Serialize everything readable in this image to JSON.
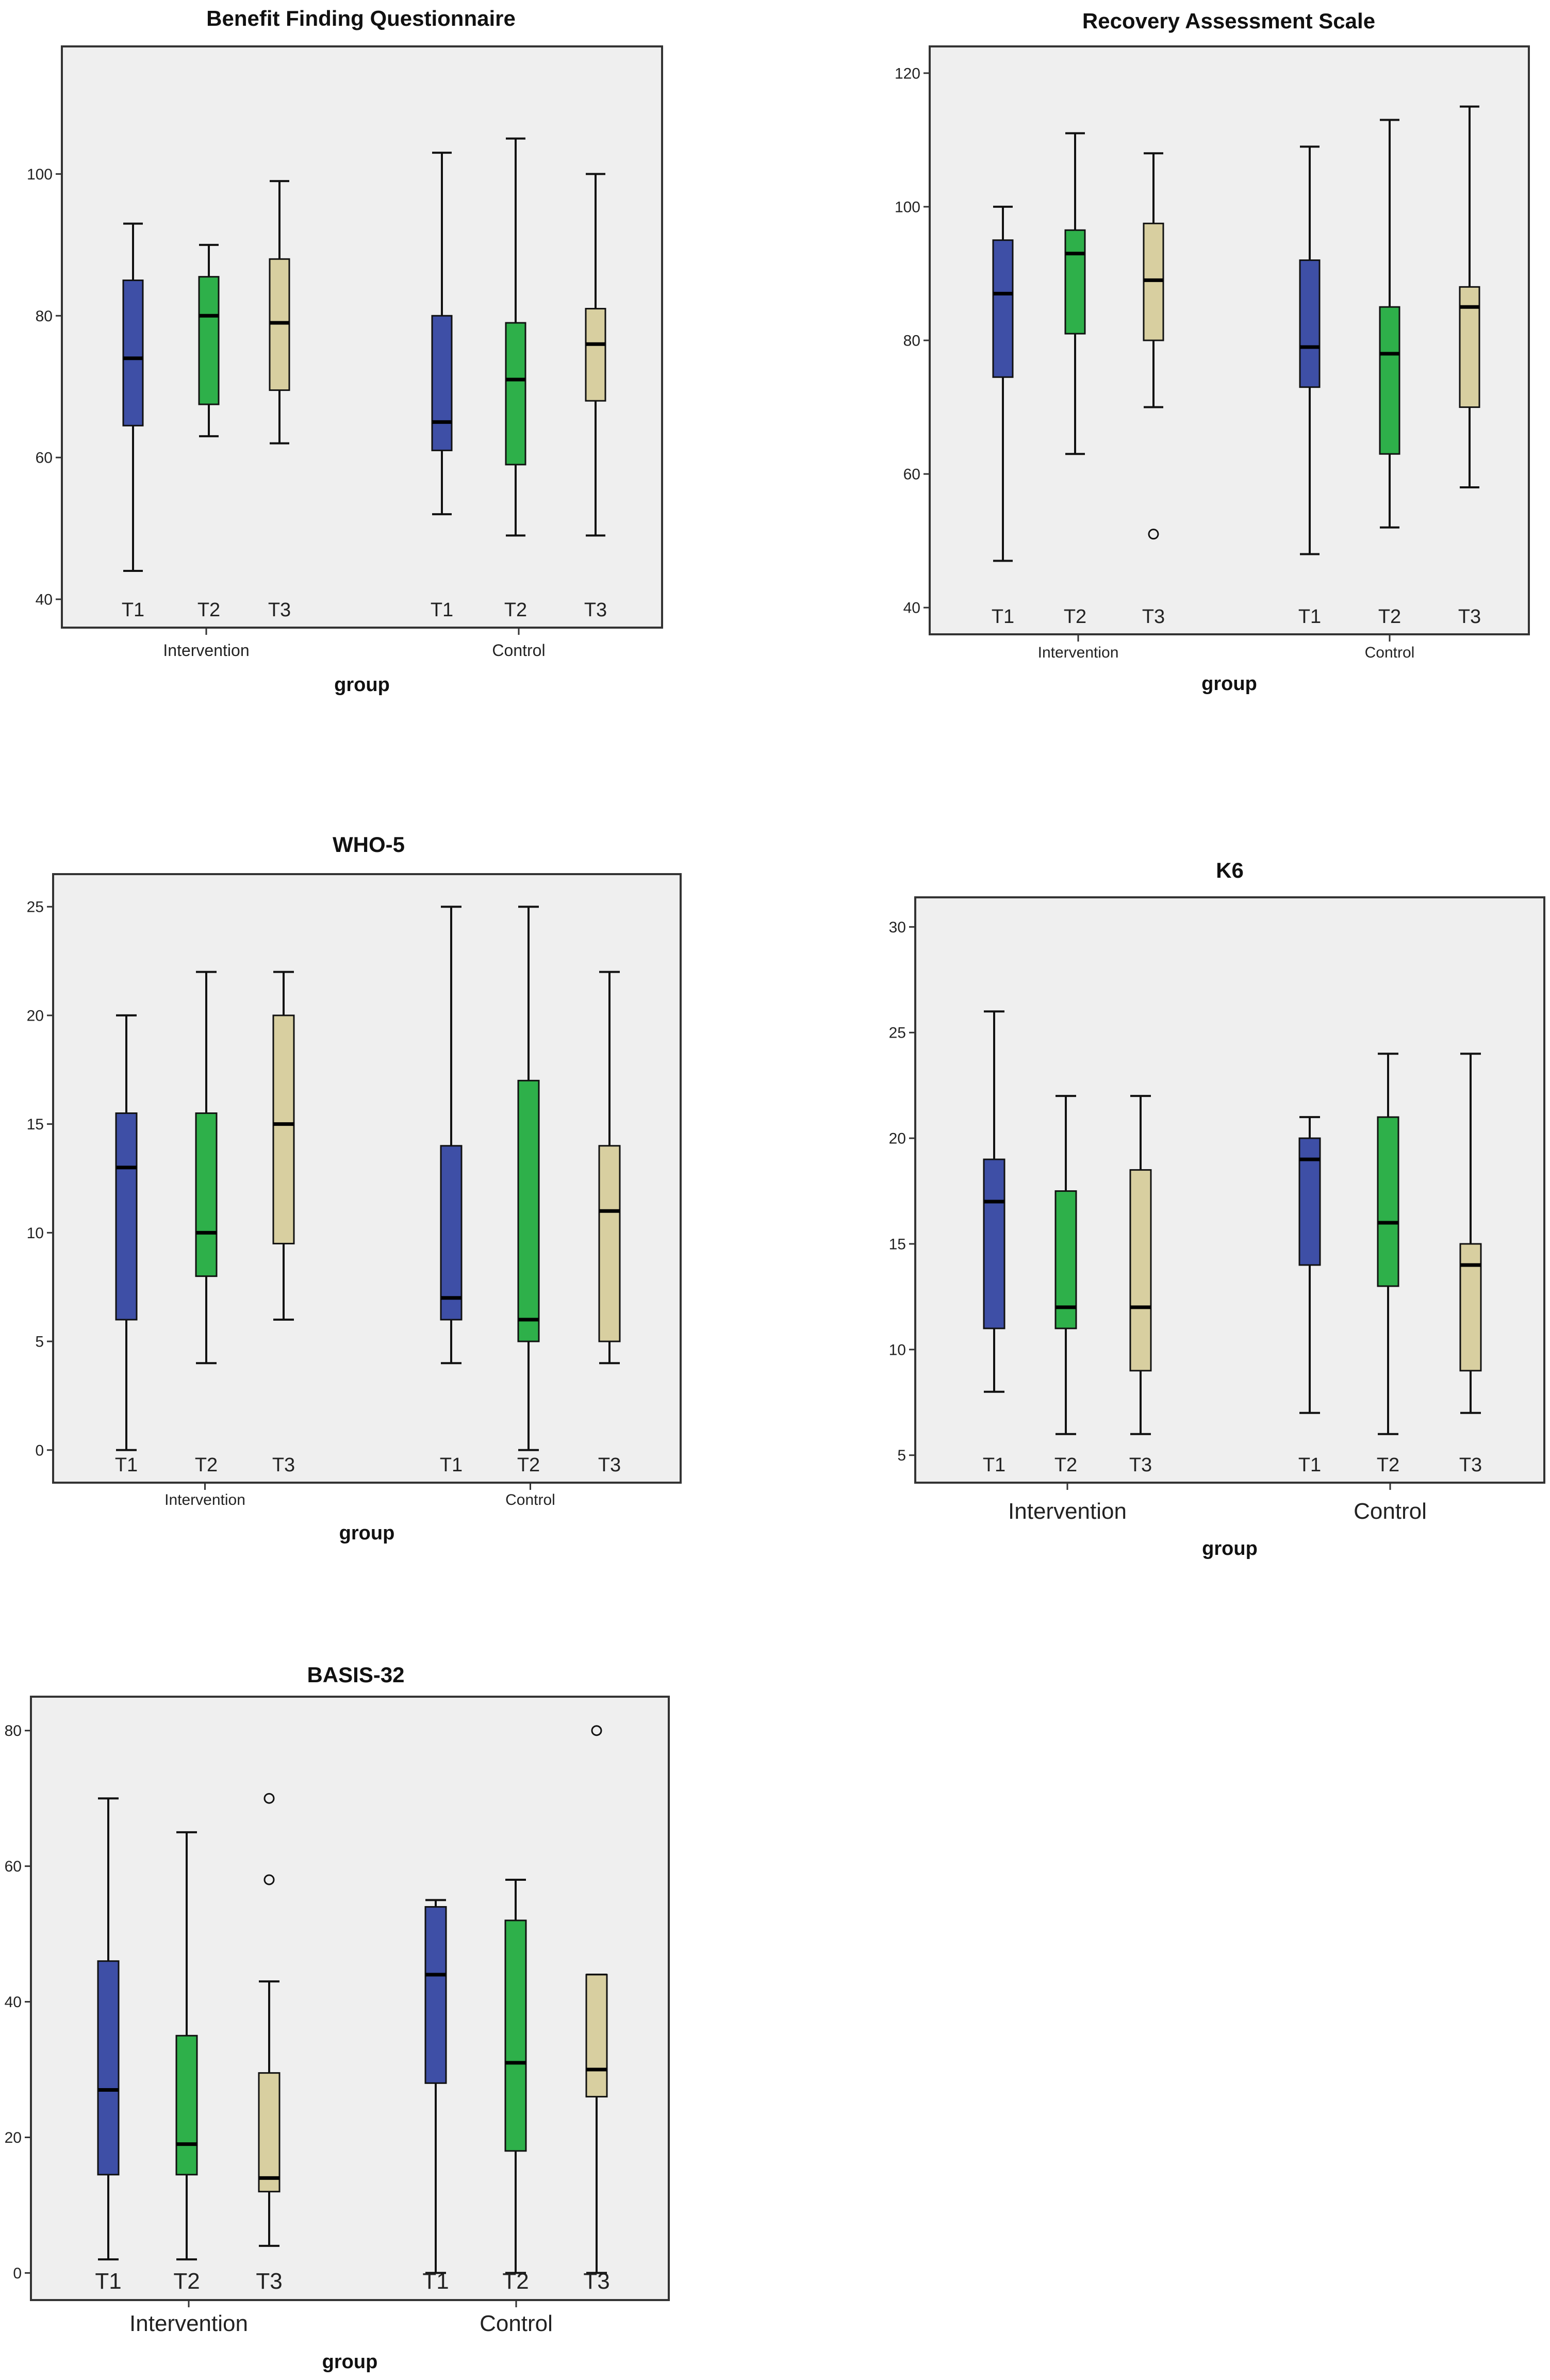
{
  "colors": {
    "T1": "#3e4fa6",
    "T2": "#2eb04a",
    "T3": "#d8cfa0",
    "plot_bg": "#efefef",
    "outline": "#111111"
  },
  "chart_data": [
    {
      "type": "boxplot",
      "title": "Benefit Finding Questionnaire",
      "xlabel": "group",
      "ylabel": "",
      "ylim": [
        36,
        118
      ],
      "yticks": [
        40,
        60,
        80,
        100
      ],
      "groups": [
        "Intervention",
        "Control"
      ],
      "timepoints": [
        "T1",
        "T2",
        "T3"
      ],
      "boxes": [
        {
          "group": "Intervention",
          "timepoint": "T1",
          "min": 44,
          "q1": 64.5,
          "median": 74,
          "q3": 85,
          "max": 93,
          "outliers": []
        },
        {
          "group": "Intervention",
          "timepoint": "T2",
          "min": 63,
          "q1": 67.5,
          "median": 80,
          "q3": 85.5,
          "max": 90,
          "outliers": []
        },
        {
          "group": "Intervention",
          "timepoint": "T3",
          "min": 62,
          "q1": 69.5,
          "median": 79,
          "q3": 88,
          "max": 99,
          "outliers": []
        },
        {
          "group": "Control",
          "timepoint": "T1",
          "min": 52,
          "q1": 61,
          "median": 65,
          "q3": 80,
          "max": 103,
          "outliers": []
        },
        {
          "group": "Control",
          "timepoint": "T2",
          "min": 49,
          "q1": 59,
          "median": 71,
          "q3": 79,
          "max": 105,
          "outliers": []
        },
        {
          "group": "Control",
          "timepoint": "T3",
          "min": 49,
          "q1": 68,
          "median": 76,
          "q3": 81,
          "max": 100,
          "outliers": []
        }
      ]
    },
    {
      "type": "boxplot",
      "title": "Recovery Assessment Scale",
      "xlabel": "group",
      "ylabel": "",
      "ylim": [
        36,
        124
      ],
      "yticks": [
        40,
        60,
        80,
        100,
        120
      ],
      "groups": [
        "Intervention",
        "Control"
      ],
      "timepoints": [
        "T1",
        "T2",
        "T3"
      ],
      "boxes": [
        {
          "group": "Intervention",
          "timepoint": "T1",
          "min": 47,
          "q1": 74.5,
          "median": 87,
          "q3": 95,
          "max": 100,
          "outliers": []
        },
        {
          "group": "Intervention",
          "timepoint": "T2",
          "min": 63,
          "q1": 81,
          "median": 93,
          "q3": 96.5,
          "max": 111,
          "outliers": []
        },
        {
          "group": "Intervention",
          "timepoint": "T3",
          "min": 70,
          "q1": 80,
          "median": 89,
          "q3": 97.5,
          "max": 108,
          "outliers": [
            51
          ]
        },
        {
          "group": "Control",
          "timepoint": "T1",
          "min": 48,
          "q1": 73,
          "median": 79,
          "q3": 92,
          "max": 109,
          "outliers": []
        },
        {
          "group": "Control",
          "timepoint": "T2",
          "min": 52,
          "q1": 63,
          "median": 78,
          "q3": 85,
          "max": 113,
          "outliers": []
        },
        {
          "group": "Control",
          "timepoint": "T3",
          "min": 58,
          "q1": 70,
          "median": 85,
          "q3": 88,
          "max": 115,
          "outliers": []
        }
      ]
    },
    {
      "type": "boxplot",
      "title": "WHO-5",
      "xlabel": "group",
      "ylabel": "",
      "ylim": [
        -1.5,
        26.5
      ],
      "yticks": [
        0,
        5,
        10,
        15,
        20,
        25
      ],
      "groups": [
        "Intervention",
        "Control"
      ],
      "timepoints": [
        "T1",
        "T2",
        "T3"
      ],
      "boxes": [
        {
          "group": "Intervention",
          "timepoint": "T1",
          "min": 0,
          "q1": 6,
          "median": 13,
          "q3": 15.5,
          "max": 20,
          "outliers": []
        },
        {
          "group": "Intervention",
          "timepoint": "T2",
          "min": 4,
          "q1": 8,
          "median": 10,
          "q3": 15.5,
          "max": 22,
          "outliers": []
        },
        {
          "group": "Intervention",
          "timepoint": "T3",
          "min": 6,
          "q1": 9.5,
          "median": 15,
          "q3": 20,
          "max": 22,
          "outliers": []
        },
        {
          "group": "Control",
          "timepoint": "T1",
          "min": 4,
          "q1": 6,
          "median": 7,
          "q3": 14,
          "max": 25,
          "outliers": []
        },
        {
          "group": "Control",
          "timepoint": "T2",
          "min": 0,
          "q1": 5,
          "median": 6,
          "q3": 17,
          "max": 25,
          "outliers": []
        },
        {
          "group": "Control",
          "timepoint": "T3",
          "min": 4,
          "q1": 5,
          "median": 11,
          "q3": 14,
          "max": 22,
          "outliers": []
        }
      ]
    },
    {
      "type": "boxplot",
      "title": "K6",
      "xlabel": "group",
      "ylabel": "",
      "ylim": [
        3.7,
        31.4
      ],
      "yticks": [
        5,
        10,
        15,
        20,
        25,
        30
      ],
      "groups": [
        "Intervention",
        "Control"
      ],
      "timepoints": [
        "T1",
        "T2",
        "T3"
      ],
      "boxes": [
        {
          "group": "Intervention",
          "timepoint": "T1",
          "min": 8,
          "q1": 11,
          "median": 17,
          "q3": 19,
          "max": 26,
          "outliers": []
        },
        {
          "group": "Intervention",
          "timepoint": "T2",
          "min": 6,
          "q1": 11,
          "median": 12,
          "q3": 17.5,
          "max": 22,
          "outliers": []
        },
        {
          "group": "Intervention",
          "timepoint": "T3",
          "min": 6,
          "q1": 9,
          "median": 12,
          "q3": 18.5,
          "max": 22,
          "outliers": []
        },
        {
          "group": "Control",
          "timepoint": "T1",
          "min": 7,
          "q1": 14,
          "median": 19,
          "q3": 20,
          "max": 21,
          "outliers": []
        },
        {
          "group": "Control",
          "timepoint": "T2",
          "min": 6,
          "q1": 13,
          "median": 16,
          "q3": 21,
          "max": 24,
          "outliers": []
        },
        {
          "group": "Control",
          "timepoint": "T3",
          "min": 7,
          "q1": 9,
          "median": 14,
          "q3": 15,
          "max": 24,
          "outliers": []
        }
      ]
    },
    {
      "type": "boxplot",
      "title": "BASIS-32",
      "xlabel": "group",
      "ylabel": "",
      "ylim": [
        -4,
        85
      ],
      "yticks": [
        0,
        20,
        40,
        60,
        80
      ],
      "groups": [
        "Intervention",
        "Control"
      ],
      "timepoints": [
        "T1",
        "T2",
        "T3"
      ],
      "boxes": [
        {
          "group": "Intervention",
          "timepoint": "T1",
          "min": 2,
          "q1": 14.5,
          "median": 27,
          "q3": 46,
          "max": 70,
          "outliers": []
        },
        {
          "group": "Intervention",
          "timepoint": "T2",
          "min": 2,
          "q1": 14.5,
          "median": 19,
          "q3": 35,
          "max": 65,
          "outliers": []
        },
        {
          "group": "Intervention",
          "timepoint": "T3",
          "min": 4,
          "q1": 12,
          "median": 14,
          "q3": 29.5,
          "max": 43,
          "outliers": [
            58,
            70
          ]
        },
        {
          "group": "Control",
          "timepoint": "T1",
          "min": 0,
          "q1": 28,
          "median": 44,
          "q3": 54,
          "max": 55,
          "outliers": []
        },
        {
          "group": "Control",
          "timepoint": "T2",
          "min": 0,
          "q1": 18,
          "median": 31,
          "q3": 52,
          "max": 58,
          "outliers": []
        },
        {
          "group": "Control",
          "timepoint": "T3",
          "min": 0,
          "q1": 26,
          "median": 30,
          "q3": 44,
          "max": 44,
          "outliers": [
            80
          ]
        }
      ]
    }
  ]
}
